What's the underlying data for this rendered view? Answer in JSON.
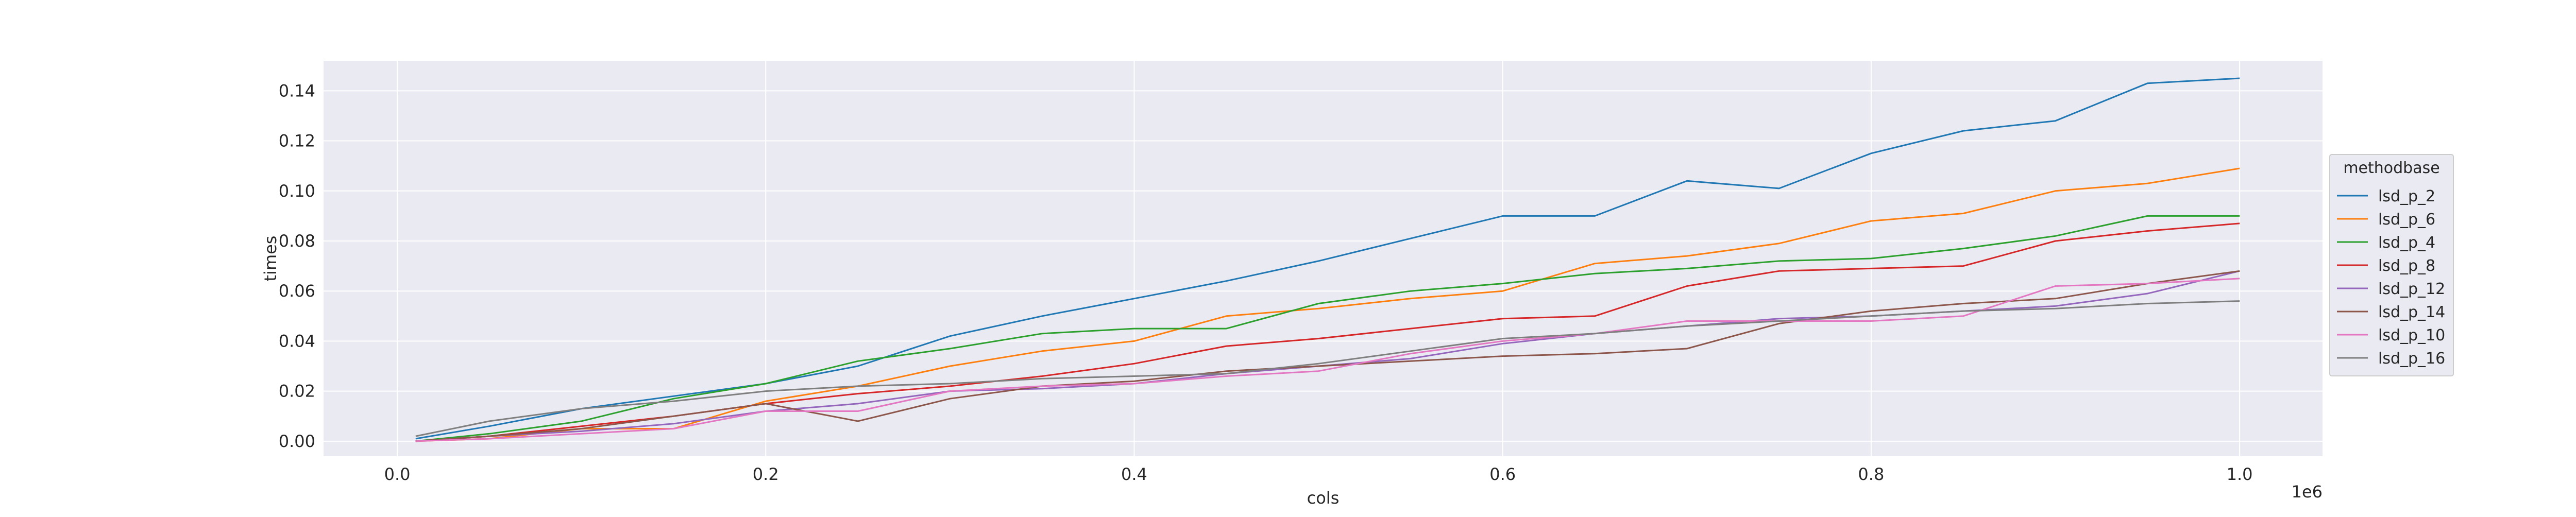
{
  "chart_data": {
    "type": "line",
    "title": "",
    "xlabel": "cols",
    "ylabel": "times",
    "x_offset_label": "1e6",
    "xlim": [
      -0.04,
      1.045
    ],
    "ylim": [
      -0.006,
      0.152
    ],
    "x_ticks": [
      0.0,
      0.2,
      0.4,
      0.6,
      0.8,
      1.0
    ],
    "x_tick_labels": [
      "0.0",
      "0.2",
      "0.4",
      "0.6",
      "0.8",
      "1.0"
    ],
    "y_ticks": [
      0.0,
      0.02,
      0.04,
      0.06,
      0.08,
      0.1,
      0.12,
      0.14
    ],
    "y_tick_labels": [
      "0.00",
      "0.02",
      "0.04",
      "0.06",
      "0.08",
      "0.10",
      "0.12",
      "0.14"
    ],
    "grid": true,
    "legend": {
      "title": "methodbase",
      "placement": "right"
    },
    "x": [
      0.01,
      0.05,
      0.1,
      0.15,
      0.2,
      0.25,
      0.3,
      0.35,
      0.4,
      0.45,
      0.5,
      0.55,
      0.6,
      0.65,
      0.7,
      0.75,
      0.8,
      0.85,
      0.9,
      0.95,
      1.0
    ],
    "series": [
      {
        "name": "lsd_p_2",
        "color": "#1f77b4",
        "values": [
          0.001,
          0.006,
          0.013,
          0.018,
          0.023,
          0.03,
          0.042,
          0.05,
          0.057,
          0.064,
          0.072,
          0.081,
          0.09,
          0.09,
          0.104,
          0.101,
          0.115,
          0.124,
          0.128,
          0.143,
          0.145
        ]
      },
      {
        "name": "lsd_p_6",
        "color": "#ff7f0e",
        "values": [
          0.0,
          0.001,
          0.005,
          0.005,
          0.016,
          0.022,
          0.03,
          0.036,
          0.04,
          0.05,
          0.053,
          0.057,
          0.06,
          0.071,
          0.074,
          0.079,
          0.088,
          0.091,
          0.1,
          0.103,
          0.109
        ]
      },
      {
        "name": "lsd_p_4",
        "color": "#2ca02c",
        "values": [
          0.0,
          0.003,
          0.008,
          0.017,
          0.023,
          0.032,
          0.037,
          0.043,
          0.045,
          0.045,
          0.055,
          0.06,
          0.063,
          0.067,
          0.069,
          0.072,
          0.073,
          0.077,
          0.082,
          0.09,
          0.09
        ]
      },
      {
        "name": "lsd_p_8",
        "color": "#d62728",
        "values": [
          0.0,
          0.002,
          0.006,
          0.01,
          0.015,
          0.019,
          0.022,
          0.026,
          0.031,
          0.038,
          0.041,
          0.045,
          0.049,
          0.05,
          0.062,
          0.068,
          0.069,
          0.07,
          0.08,
          0.084,
          0.087
        ]
      },
      {
        "name": "lsd_p_12",
        "color": "#9467bd",
        "values": [
          0.0,
          0.002,
          0.004,
          0.007,
          0.012,
          0.015,
          0.02,
          0.021,
          0.023,
          0.027,
          0.03,
          0.033,
          0.039,
          0.043,
          0.046,
          0.049,
          0.05,
          0.052,
          0.054,
          0.059,
          0.068
        ]
      },
      {
        "name": "lsd_p_14",
        "color": "#8c564b",
        "values": [
          0.0,
          0.002,
          0.005,
          0.01,
          0.015,
          0.008,
          0.017,
          0.022,
          0.024,
          0.028,
          0.03,
          0.032,
          0.034,
          0.035,
          0.037,
          0.047,
          0.052,
          0.055,
          0.057,
          0.063,
          0.068
        ]
      },
      {
        "name": "lsd_p_10",
        "color": "#e377c2",
        "values": [
          0.0,
          0.001,
          0.003,
          0.005,
          0.012,
          0.012,
          0.02,
          0.022,
          0.023,
          0.026,
          0.028,
          0.035,
          0.04,
          0.043,
          0.048,
          0.048,
          0.048,
          0.05,
          0.062,
          0.063,
          0.065
        ]
      },
      {
        "name": "lsd_p_16",
        "color": "#7f7f7f",
        "values": [
          0.002,
          0.008,
          0.013,
          0.016,
          0.02,
          0.022,
          0.023,
          0.025,
          0.026,
          0.027,
          0.031,
          0.036,
          0.041,
          0.043,
          0.046,
          0.048,
          0.05,
          0.052,
          0.053,
          0.055,
          0.056
        ]
      }
    ]
  }
}
